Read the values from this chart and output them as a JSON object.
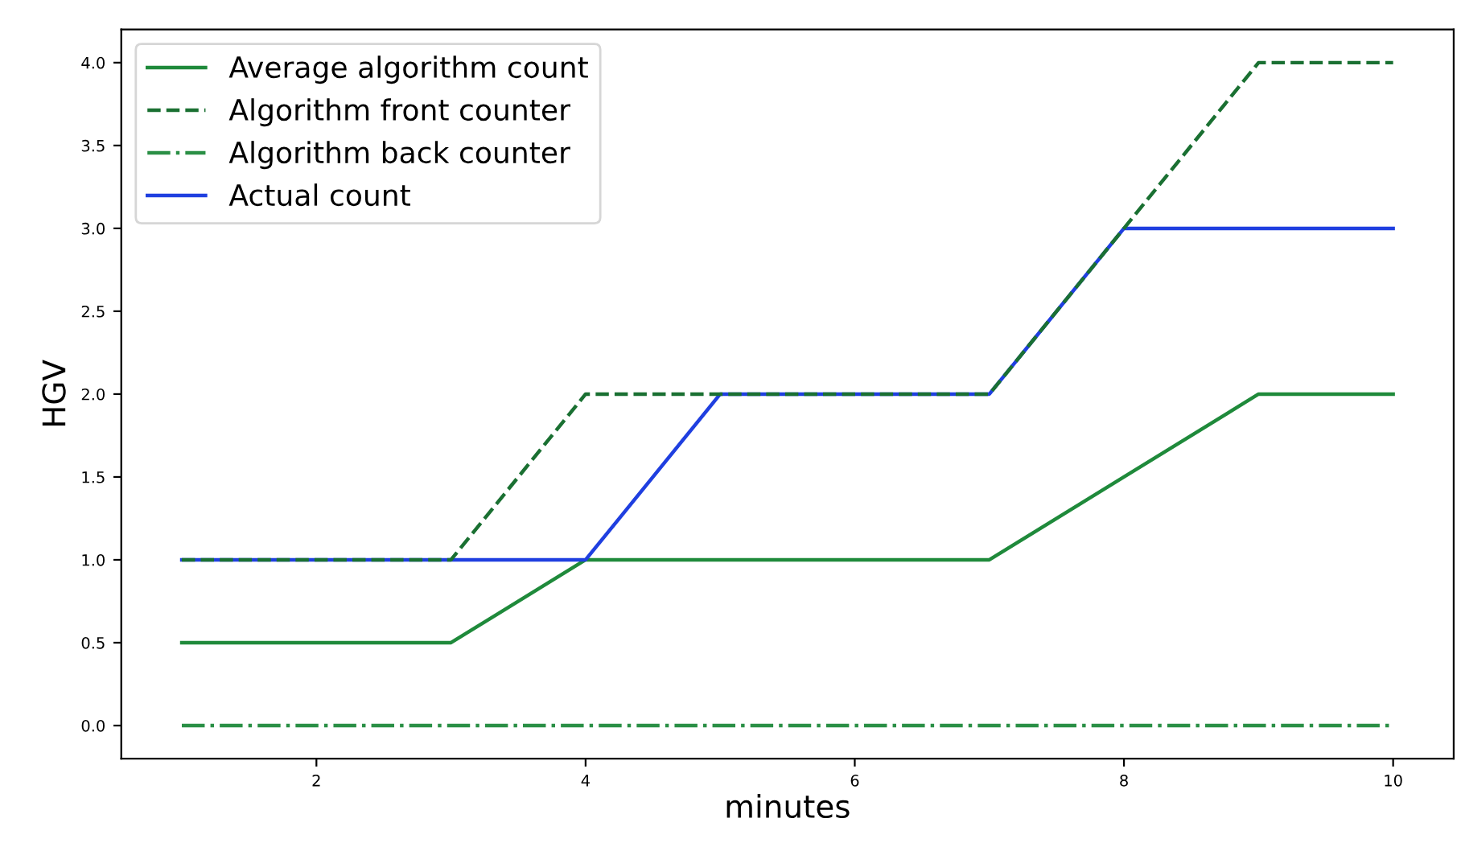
{
  "chart_data": {
    "type": "line",
    "xlabel": "minutes",
    "ylabel": "HGV",
    "x": [
      1,
      2,
      3,
      4,
      5,
      6,
      7,
      8,
      9,
      10
    ],
    "series": [
      {
        "name": "Average algorithm count",
        "color": "#1f8a3b",
        "line_style": "solid",
        "values": [
          0.5,
          0.5,
          0.5,
          1,
          1,
          1,
          1,
          1.5,
          2,
          2
        ]
      },
      {
        "name": "Algorithm front counter",
        "color": "#1a7032",
        "line_style": "dashed",
        "values": [
          1,
          1,
          1,
          2,
          2,
          2,
          2,
          3,
          4,
          4
        ]
      },
      {
        "name": "Algorithm back counter",
        "color": "#2a8f45",
        "line_style": "dashdot",
        "values": [
          0,
          0,
          0,
          0,
          0,
          0,
          0,
          0,
          0,
          0
        ]
      },
      {
        "name": "Actual count",
        "color": "#1f3fe0",
        "line_style": "solid",
        "values": [
          1,
          1,
          1,
          1,
          2,
          2,
          2,
          3,
          3,
          3
        ]
      }
    ],
    "xlim": [
      0.55,
      10.45
    ],
    "ylim": [
      -0.2,
      4.2
    ],
    "xticks": [
      2,
      4,
      6,
      8,
      10
    ],
    "yticks": [
      {
        "value": 0,
        "label": "0.0"
      },
      {
        "value": 0.5,
        "label": "0.5"
      },
      {
        "value": 1,
        "label": "1.0"
      },
      {
        "value": 1.5,
        "label": "1.5"
      },
      {
        "value": 2,
        "label": "2.0"
      },
      {
        "value": 2.5,
        "label": "2.5"
      },
      {
        "value": 3,
        "label": "3.0"
      },
      {
        "value": 3.5,
        "label": "3.5"
      },
      {
        "value": 4,
        "label": "4.0"
      }
    ],
    "grid": false,
    "legend": "top left",
    "marker": "none"
  }
}
